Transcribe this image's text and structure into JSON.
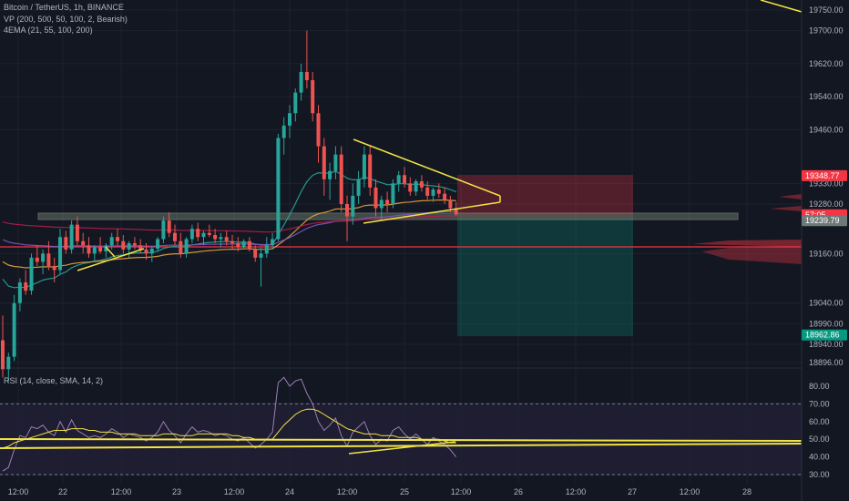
{
  "header": {
    "title": "Bitcoin / TetherUS, 1h, BINANCE",
    "vp": "VP (200, 500, 50, 100, 2, Bearish)",
    "ema": "4EMA (21, 55, 100, 200)",
    "rsi": "RSI (14, close, SMA, 14, 2)"
  },
  "chart_data": {
    "type": "candlestick",
    "symbol": "BTCUSDT",
    "timeframe": "1h",
    "exchange": "BINANCE",
    "price_axis_ticks": [
      19750,
      19700,
      19620,
      19540,
      19460,
      19330,
      19280,
      19160,
      19040,
      18990,
      18940,
      18896
    ],
    "price_axis_labels": [
      "19750.00",
      "19700.00",
      "19620.00",
      "19540.00",
      "19460.00",
      "19330.00",
      "19280.00",
      "19160.00",
      "19040.00",
      "18990.00",
      "18940.00",
      "18896.00"
    ],
    "rsi_ticks": [
      80,
      70,
      60,
      50,
      40,
      30
    ],
    "rsi_labels": [
      "80.00",
      "70.00",
      "60.00",
      "50.00",
      "40.00",
      "30.00"
    ],
    "time_labels": [
      "12:00",
      "22",
      "12:00",
      "23",
      "12:00",
      "24",
      "12:00",
      "25",
      "12:00",
      "26",
      "12:00",
      "27",
      "12:00",
      "28"
    ],
    "price_tags": [
      {
        "label": "19348.77",
        "price": 19348.77,
        "color": "#f23645"
      },
      {
        "label": "57:05",
        "price": 19254,
        "color": "#f23645"
      },
      {
        "label": "19239.79",
        "price": 19239.79,
        "color": "#6e7a78"
      },
      {
        "label": "18962.86",
        "price": 18962.86,
        "color": "#089981"
      }
    ],
    "position": {
      "entry": 19248,
      "stop": 19348.77,
      "target": 18962.86,
      "side": "short"
    },
    "support_line": 19185,
    "colors": {
      "up": "#26a69a",
      "down": "#ef5350",
      "drawing": "#f0e442",
      "rsi": "#9c7fb5",
      "background": "#131722"
    },
    "candles": [
      [
        18950,
        19010,
        18860,
        18880
      ],
      [
        18880,
        18920,
        18850,
        18910
      ],
      [
        18910,
        19060,
        18900,
        19040
      ],
      [
        19040,
        19100,
        19020,
        19090
      ],
      [
        19090,
        19120,
        19060,
        19070
      ],
      [
        19070,
        19160,
        19060,
        19150
      ],
      [
        19150,
        19180,
        19130,
        19140
      ],
      [
        19140,
        19170,
        19110,
        19160
      ],
      [
        19160,
        19190,
        19120,
        19130
      ],
      [
        19130,
        19150,
        19090,
        19120
      ],
      [
        19120,
        19220,
        19110,
        19200
      ],
      [
        19200,
        19215,
        19160,
        19170
      ],
      [
        19170,
        19240,
        19160,
        19230
      ],
      [
        19230,
        19250,
        19180,
        19190
      ],
      [
        19190,
        19210,
        19160,
        19180
      ],
      [
        19180,
        19200,
        19150,
        19160
      ],
      [
        19160,
        19180,
        19140,
        19175
      ],
      [
        19175,
        19200,
        19160,
        19165
      ],
      [
        19165,
        19185,
        19150,
        19180
      ],
      [
        19180,
        19210,
        19170,
        19200
      ],
      [
        19200,
        19220,
        19180,
        19190
      ],
      [
        19190,
        19205,
        19160,
        19170
      ],
      [
        19170,
        19190,
        19150,
        19185
      ],
      [
        19185,
        19200,
        19170,
        19180
      ],
      [
        19180,
        19195,
        19160,
        19170
      ],
      [
        19170,
        19185,
        19145,
        19160
      ],
      [
        19160,
        19178,
        19140,
        19172
      ],
      [
        19172,
        19200,
        19165,
        19195
      ],
      [
        19195,
        19250,
        19185,
        19240
      ],
      [
        19240,
        19260,
        19200,
        19210
      ],
      [
        19210,
        19230,
        19180,
        19190
      ],
      [
        19190,
        19210,
        19150,
        19160
      ],
      [
        19160,
        19200,
        19150,
        19195
      ],
      [
        19195,
        19230,
        19185,
        19220
      ],
      [
        19220,
        19235,
        19190,
        19200
      ],
      [
        19200,
        19215,
        19180,
        19210
      ],
      [
        19210,
        19230,
        19200,
        19205
      ],
      [
        19205,
        19220,
        19185,
        19195
      ],
      [
        19195,
        19210,
        19175,
        19200
      ],
      [
        19200,
        19215,
        19180,
        19190
      ],
      [
        19190,
        19205,
        19170,
        19185
      ],
      [
        19185,
        19200,
        19165,
        19175
      ],
      [
        19175,
        19195,
        19170,
        19190
      ],
      [
        19190,
        19200,
        19165,
        19170
      ],
      [
        19170,
        19180,
        19140,
        19150
      ],
      [
        19150,
        19175,
        19080,
        19160
      ],
      [
        19160,
        19200,
        19150,
        19180
      ],
      [
        19180,
        19210,
        19170,
        19195
      ],
      [
        19195,
        19450,
        19190,
        19440
      ],
      [
        19440,
        19490,
        19400,
        19470
      ],
      [
        19470,
        19520,
        19440,
        19500
      ],
      [
        19500,
        19560,
        19480,
        19550
      ],
      [
        19550,
        19620,
        19530,
        19600
      ],
      [
        19600,
        19700,
        19560,
        19580
      ],
      [
        19580,
        19600,
        19480,
        19500
      ],
      [
        19500,
        19520,
        19380,
        19420
      ],
      [
        19420,
        19440,
        19300,
        19340
      ],
      [
        19340,
        19380,
        19290,
        19360
      ],
      [
        19360,
        19420,
        19340,
        19400
      ],
      [
        19400,
        19420,
        19260,
        19280
      ],
      [
        19280,
        19300,
        19190,
        19250
      ],
      [
        19250,
        19330,
        19230,
        19300
      ],
      [
        19300,
        19360,
        19280,
        19340
      ],
      [
        19340,
        19420,
        19320,
        19400
      ],
      [
        19400,
        19420,
        19300,
        19320
      ],
      [
        19320,
        19340,
        19250,
        19270
      ],
      [
        19270,
        19300,
        19240,
        19290
      ],
      [
        19290,
        19310,
        19260,
        19280
      ],
      [
        19280,
        19340,
        19270,
        19330
      ],
      [
        19330,
        19360,
        19310,
        19350
      ],
      [
        19350,
        19370,
        19320,
        19330
      ],
      [
        19330,
        19345,
        19300,
        19310
      ],
      [
        19310,
        19340,
        19300,
        19335
      ],
      [
        19335,
        19350,
        19310,
        19320
      ],
      [
        19320,
        19335,
        19290,
        19300
      ],
      [
        19300,
        19320,
        19285,
        19315
      ],
      [
        19315,
        19330,
        19295,
        19305
      ],
      [
        19305,
        19320,
        19280,
        19290
      ],
      [
        19290,
        19300,
        19260,
        19270
      ],
      [
        19270,
        19285,
        19250,
        19255
      ]
    ],
    "rsi_values": [
      32,
      34,
      44,
      52,
      51,
      57,
      56,
      58,
      54,
      52,
      60,
      54,
      61,
      55,
      53,
      51,
      52,
      51,
      53,
      56,
      54,
      51,
      53,
      52,
      51,
      49,
      51,
      54,
      60,
      55,
      52,
      48,
      53,
      57,
      54,
      55,
      54,
      52,
      53,
      52,
      50,
      49,
      51,
      48,
      45,
      47,
      50,
      54,
      82,
      85,
      80,
      83,
      84,
      76,
      70,
      60,
      55,
      58,
      62,
      52,
      46,
      54,
      57,
      60,
      52,
      47,
      50,
      49,
      55,
      57,
      53,
      50,
      53,
      50,
      47,
      51,
      49,
      47,
      44,
      40
    ],
    "rsi_sma": [
      45,
      46,
      48,
      49,
      50,
      51,
      52,
      53,
      54,
      55,
      55,
      55,
      56,
      56,
      56,
      55,
      55,
      54,
      54,
      54,
      53,
      53,
      53,
      53,
      52,
      52,
      52,
      52,
      53,
      53,
      53,
      52,
      52,
      52,
      53,
      53,
      53,
      53,
      53,
      53,
      52,
      52,
      51,
      51,
      50,
      50,
      50,
      50,
      54,
      58,
      61,
      64,
      66,
      67,
      67,
      66,
      64,
      62,
      60,
      58,
      56,
      55,
      54,
      53,
      53,
      53,
      52,
      52,
      52,
      51,
      51,
      51,
      51,
      50,
      50,
      50,
      50,
      49,
      48,
      48
    ]
  }
}
